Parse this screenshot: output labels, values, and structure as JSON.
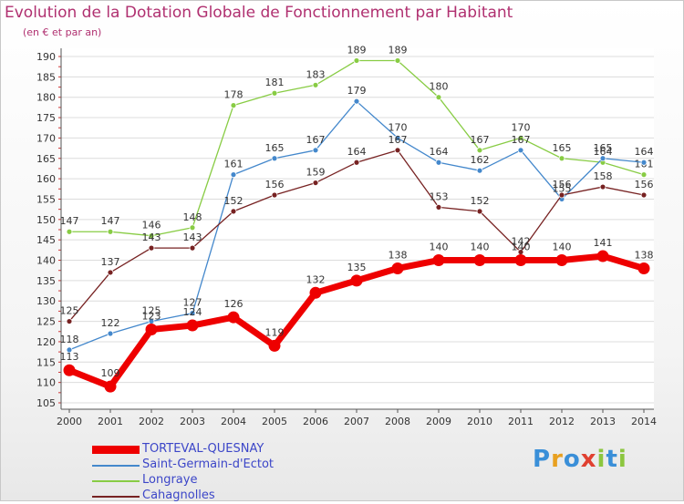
{
  "title": "Evolution de la Dotation Globale de Fonctionnement par Habitant",
  "subtitle": "(en € et par an)",
  "logo": "Proxiti",
  "chart_data": {
    "type": "line",
    "title": "Evolution de la Dotation Globale de Fonctionnement par Habitant",
    "ylabel": "(en € et par an)",
    "xlabel": "",
    "ylim": [
      105,
      190
    ],
    "yticks": [
      105,
      110,
      115,
      120,
      125,
      130,
      135,
      140,
      145,
      150,
      155,
      160,
      165,
      170,
      175,
      180,
      185,
      190
    ],
    "x": [
      "2000",
      "2001",
      "2002",
      "2003",
      "2004",
      "2005",
      "2006",
      "2007",
      "2008",
      "2009",
      "2010",
      "2011",
      "2012",
      "2013",
      "2014"
    ],
    "grid": "horizontal",
    "legend_position": "bottom-left",
    "series": [
      {
        "name": "Longraye",
        "color": "#88cc44",
        "values": [
          147,
          147,
          146,
          148,
          178,
          181,
          183,
          189,
          189,
          180,
          167,
          170,
          165,
          164,
          161
        ]
      },
      {
        "name": "Saint-Germain-d'Ectot",
        "color": "#4488cc",
        "values": [
          118,
          122,
          125,
          127,
          161,
          165,
          167,
          179,
          170,
          164,
          162,
          167,
          155,
          165,
          164
        ]
      },
      {
        "name": "Cahagnolles",
        "color": "#772222",
        "values": [
          125,
          137,
          143,
          143,
          152,
          156,
          159,
          164,
          167,
          153,
          152,
          142,
          156,
          158,
          156
        ]
      },
      {
        "name": "TORTEVAL-QUESNAY",
        "color": "#ee0000",
        "values": [
          113,
          109,
          123,
          124,
          126,
          119,
          132,
          135,
          138,
          140,
          140,
          140,
          140,
          141,
          138
        ]
      }
    ],
    "legend_order": [
      "TORTEVAL-QUESNAY",
      "Saint-Germain-d'Ectot",
      "Longraye",
      "Cahagnolles"
    ]
  }
}
